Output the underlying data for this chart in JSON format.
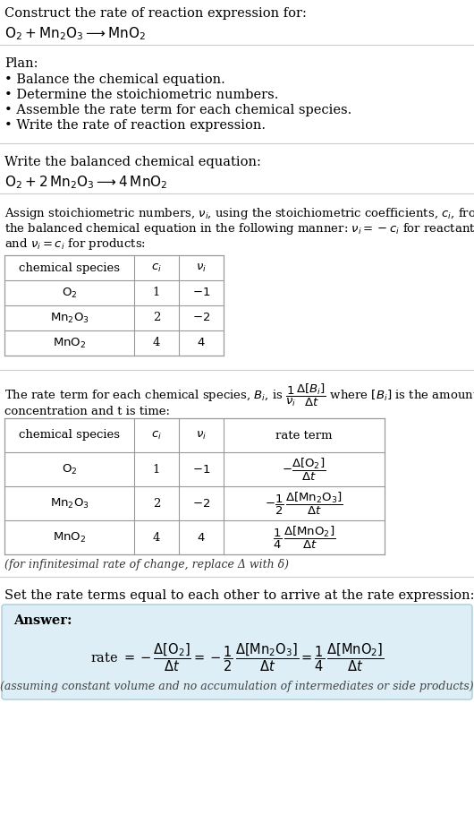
{
  "bg_color": "#ffffff",
  "text_color": "#000000",
  "answer_bg": "#ddeef6",
  "answer_border": "#aaccdd",
  "title_text": "Construct the rate of reaction expression for:",
  "plan_header": "Plan:",
  "plan_items": [
    "• Balance the chemical equation.",
    "• Determine the stoichiometric numbers.",
    "• Assemble the rate term for each chemical species.",
    "• Write the rate of reaction expression."
  ],
  "balanced_header": "Write the balanced chemical equation:",
  "stoich_intro_line1": "Assign stoichiometric numbers, νᵢ, using the stoichiometric coefficients, cᵢ, from",
  "stoich_intro_line2": "the balanced chemical equation in the following manner: νᵢ = −cᵢ for reactants",
  "stoich_intro_line3": "and νᵢ = cᵢ for products:",
  "rate_intro_line1": "The rate term for each chemical species, Bᵢ, is",
  "rate_intro_line2": "concentration and t is time:",
  "set_equal_text": "Set the rate terms equal to each other to arrive at the rate expression:",
  "answer_label": "Answer:",
  "assuming_note": "(assuming constant volume and no accumulation of intermediates or side products)",
  "infinitesimal_note": "(for infinitesimal rate of change, replace Δ with δ)"
}
